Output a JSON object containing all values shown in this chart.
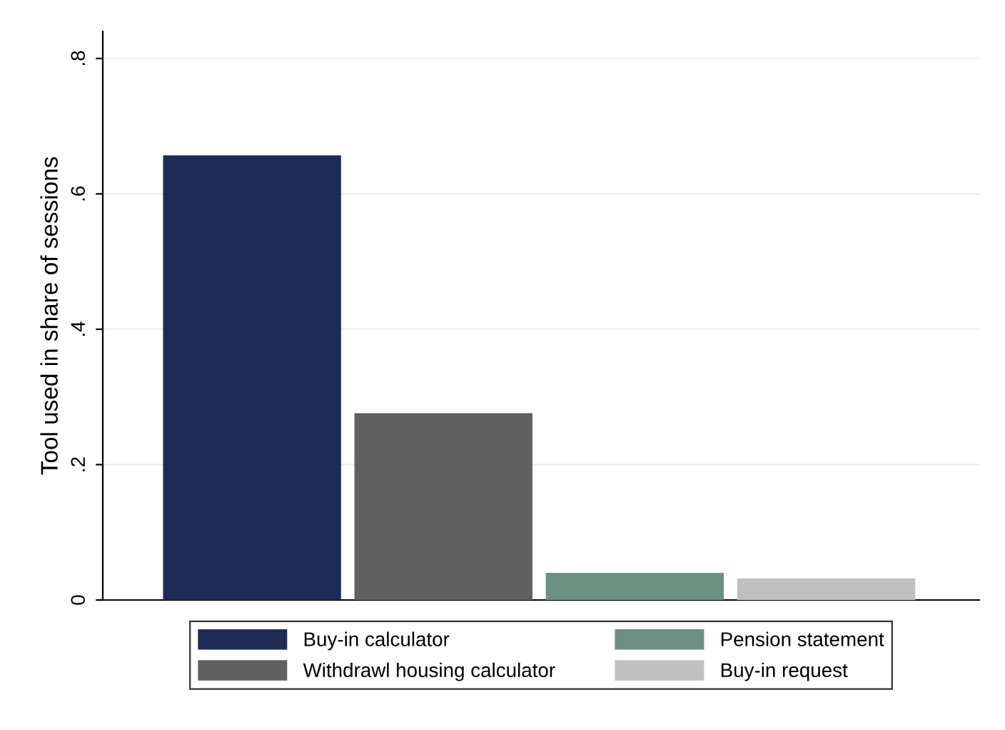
{
  "chart_data": {
    "type": "bar",
    "ylabel": "Tool used in share of sessions",
    "categories": [
      null,
      null,
      null,
      null
    ],
    "series": [
      {
        "name": "Buy-in calculator",
        "color": "#1d2b55",
        "values": [
          0.657,
          null,
          null,
          null
        ]
      },
      {
        "name": "Withdrawl housing calculator",
        "color": "#606060",
        "values": [
          null,
          0.276,
          null,
          null
        ]
      },
      {
        "name": "Pension statement",
        "color": "#6b8f80",
        "values": [
          null,
          null,
          0.04,
          null
        ]
      },
      {
        "name": "Buy-in request",
        "color": "#c0c0c0",
        "values": [
          null,
          null,
          null,
          0.032
        ]
      }
    ],
    "ylim": [
      0,
      0.84
    ],
    "yticks": [
      0,
      {
        "value": 0.2,
        "label": ".2"
      },
      {
        "value": 0.4,
        "label": ".4"
      },
      {
        "value": 0.6,
        "label": ".6"
      },
      {
        "value": 0.8,
        "label": ".8"
      }
    ],
    "grid": "y",
    "legend": "bottom"
  }
}
